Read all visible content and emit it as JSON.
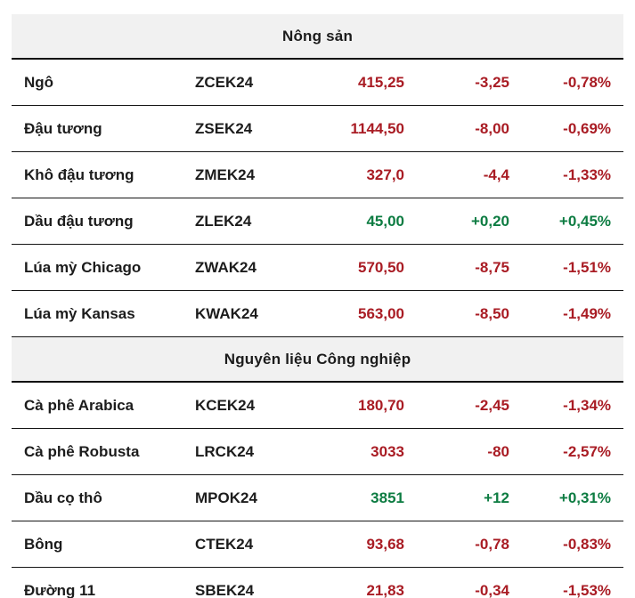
{
  "colors": {
    "down": "#a91c24",
    "up": "#0d7c42",
    "section_header_bg": "#f1f1f1",
    "text": "#1c1c1c",
    "border": "#161616"
  },
  "sections": [
    {
      "header": "Nông sản",
      "rows": [
        {
          "name": "Ngô",
          "code": "ZCEK24",
          "price": "415,25",
          "change": "-3,25",
          "pct": "-0,78%",
          "trend": "down"
        },
        {
          "name": "Đậu tương",
          "code": "ZSEK24",
          "price": "1144,50",
          "change": "-8,00",
          "pct": "-0,69%",
          "trend": "down"
        },
        {
          "name": "Khô đậu tương",
          "code": "ZMEK24",
          "price": "327,0",
          "change": "-4,4",
          "pct": "-1,33%",
          "trend": "down"
        },
        {
          "name": "Dầu đậu tương",
          "code": "ZLEK24",
          "price": "45,00",
          "change": "+0,20",
          "pct": "+0,45%",
          "trend": "up"
        },
        {
          "name": "Lúa mỳ Chicago",
          "code": "ZWAK24",
          "price": "570,50",
          "change": "-8,75",
          "pct": "-1,51%",
          "trend": "down"
        },
        {
          "name": "Lúa mỳ Kansas",
          "code": "KWAK24",
          "price": "563,00",
          "change": "-8,50",
          "pct": "-1,49%",
          "trend": "down"
        }
      ]
    },
    {
      "header": "Nguyên liệu Công nghiệp",
      "rows": [
        {
          "name": "Cà phê Arabica",
          "code": "KCEK24",
          "price": "180,70",
          "change": "-2,45",
          "pct": "-1,34%",
          "trend": "down"
        },
        {
          "name": "Cà phê Robusta",
          "code": "LRCK24",
          "price": "3033",
          "change": "-80",
          "pct": "-2,57%",
          "trend": "down"
        },
        {
          "name": "Dầu cọ thô",
          "code": "MPOK24",
          "price": "3851",
          "change": "+12",
          "pct": "+0,31%",
          "trend": "up"
        },
        {
          "name": "Bông",
          "code": "CTEK24",
          "price": "93,68",
          "change": "-0,78",
          "pct": "-0,83%",
          "trend": "down"
        },
        {
          "name": "Đường 11",
          "code": "SBEK24",
          "price": "21,83",
          "change": "-0,34",
          "pct": "-1,53%",
          "trend": "down"
        }
      ]
    }
  ],
  "chart_data": {
    "type": "table",
    "sections": [
      {
        "title": "Nông sản",
        "rows": [
          {
            "name": "Ngô",
            "code": "ZCEK24",
            "price": 415.25,
            "change": -3.25,
            "change_pct": -0.78
          },
          {
            "name": "Đậu tương",
            "code": "ZSEK24",
            "price": 1144.5,
            "change": -8.0,
            "change_pct": -0.69
          },
          {
            "name": "Khô đậu tương",
            "code": "ZMEK24",
            "price": 327.0,
            "change": -4.4,
            "change_pct": -1.33
          },
          {
            "name": "Dầu đậu tương",
            "code": "ZLEK24",
            "price": 45.0,
            "change": 0.2,
            "change_pct": 0.45
          },
          {
            "name": "Lúa mỳ Chicago",
            "code": "ZWAK24",
            "price": 570.5,
            "change": -8.75,
            "change_pct": -1.51
          },
          {
            "name": "Lúa mỳ Kansas",
            "code": "KWAK24",
            "price": 563.0,
            "change": -8.5,
            "change_pct": -1.49
          }
        ]
      },
      {
        "title": "Nguyên liệu Công nghiệp",
        "rows": [
          {
            "name": "Cà phê Arabica",
            "code": "KCEK24",
            "price": 180.7,
            "change": -2.45,
            "change_pct": -1.34
          },
          {
            "name": "Cà phê Robusta",
            "code": "LRCK24",
            "price": 3033,
            "change": -80,
            "change_pct": -2.57
          },
          {
            "name": "Dầu cọ thô",
            "code": "MPOK24",
            "price": 3851,
            "change": 12,
            "change_pct": 0.31
          },
          {
            "name": "Bông",
            "code": "CTEK24",
            "price": 93.68,
            "change": -0.78,
            "change_pct": -0.83
          },
          {
            "name": "Đường 11",
            "code": "SBEK24",
            "price": 21.83,
            "change": -0.34,
            "change_pct": -1.53
          }
        ]
      }
    ]
  }
}
